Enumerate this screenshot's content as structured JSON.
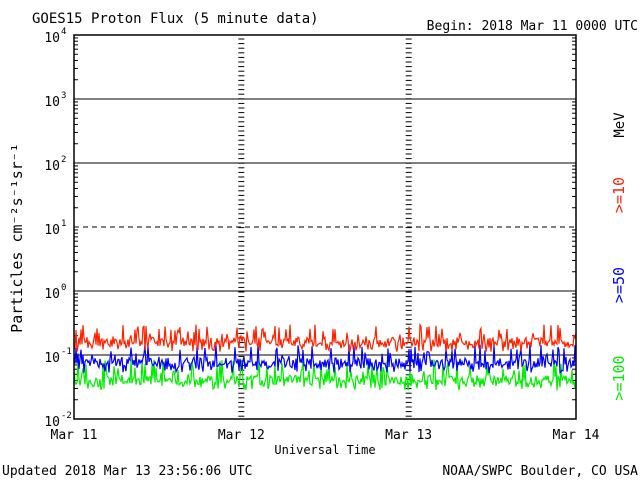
{
  "chart_data": {
    "type": "line",
    "title": "GOES15 Proton Flux (5 minute data)",
    "begin_label": "Begin: 2018 Mar 11 0000 UTC",
    "xlabel": "Universal Time",
    "ylabel": "Particles cm⁻²s⁻¹sr⁻¹",
    "y_scale": "log",
    "ylim": [
      0.01,
      10000
    ],
    "x_tick_labels": [
      "Mar 11",
      "Mar 12",
      "Mar 13",
      "Mar 14"
    ],
    "y_tick_labels": [
      {
        "base": "10",
        "exp": "-2"
      },
      {
        "base": "10",
        "exp": "-1"
      },
      {
        "base": "10",
        "exp": "0"
      },
      {
        "base": "10",
        "exp": "1"
      },
      {
        "base": "10",
        "exp": "2"
      },
      {
        "base": "10",
        "exp": "3"
      },
      {
        "base": "10",
        "exp": "4"
      }
    ],
    "energy_unit": "MeV",
    "series": [
      {
        "name": ">=10",
        "color": "#ff2200",
        "baseline": 0.16,
        "peak": 0.3
      },
      {
        "name": ">=50",
        "color": "#0000ff",
        "baseline": 0.075,
        "peak": 0.15
      },
      {
        "name": ">=100",
        "color": "#00ee00",
        "baseline": 0.04,
        "peak": 0.085
      }
    ]
  },
  "footer": {
    "updated": "Updated 2018 Mar 13 23:56:06 UTC",
    "credit": "NOAA/SWPC Boulder, CO USA"
  }
}
